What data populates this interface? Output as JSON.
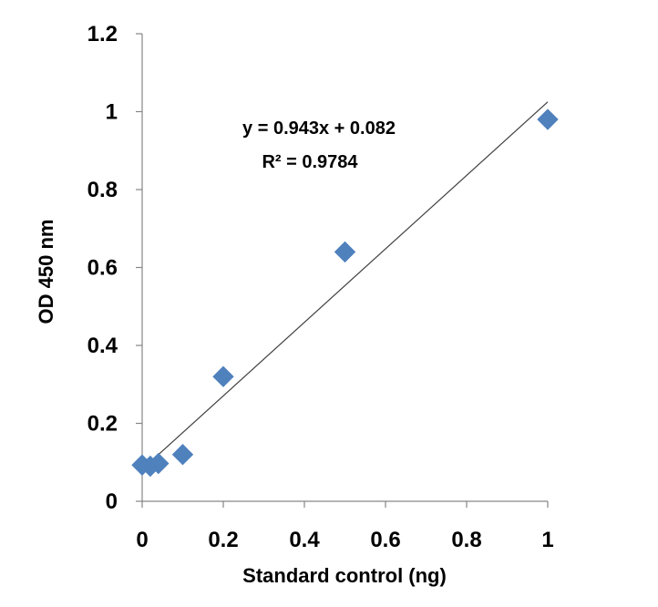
{
  "chart_data": {
    "type": "scatter",
    "xlabel": "Standard control (ng)",
    "ylabel": "OD 450 nm",
    "xlim": [
      0,
      1
    ],
    "ylim": [
      0,
      1.2
    ],
    "x_ticks": [
      0,
      0.2,
      0.4,
      0.6,
      0.8,
      1
    ],
    "x_tick_labels": [
      "0",
      "0.2",
      "0.4",
      "0.6",
      "0.8",
      "1"
    ],
    "y_ticks": [
      0,
      0.2,
      0.4,
      0.6,
      0.8,
      1,
      1.2
    ],
    "y_tick_labels": [
      "0",
      "0.2",
      "0.4",
      "0.6",
      "0.8",
      "1",
      "1.2"
    ],
    "grid": false,
    "legend": "none",
    "series": [
      {
        "marker": "diamond",
        "color": "#4F81BD",
        "x": [
          0,
          0.02,
          0.04,
          0.1,
          0.2,
          0.5,
          1
        ],
        "y": [
          0.093,
          0.09,
          0.097,
          0.12,
          0.32,
          0.64,
          0.98
        ]
      }
    ],
    "trendline": {
      "type": "linear",
      "slope": 0.943,
      "intercept": 0.082,
      "x_range": [
        0,
        1
      ],
      "color": "#404040",
      "equation_text": "y = 0.943x + 0.082",
      "r2_text": "R² = 0.9784"
    }
  }
}
